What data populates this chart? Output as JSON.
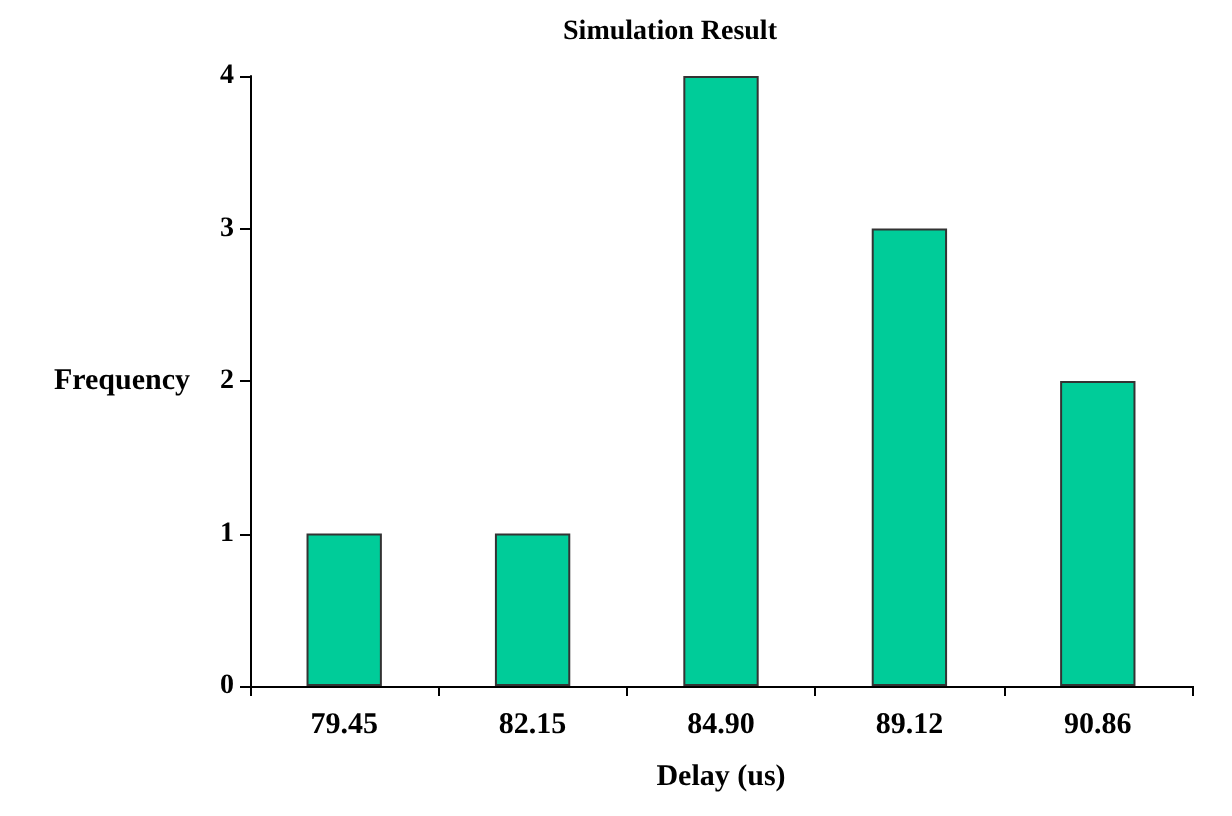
{
  "chart_data": {
    "type": "bar",
    "title": "Simulation Result",
    "xlabel": "Delay (us)",
    "ylabel": "Frequency",
    "categories": [
      "79.45",
      "82.15",
      "84.90",
      "89.12",
      "90.86"
    ],
    "values": [
      1,
      1,
      4,
      3,
      2
    ],
    "color": "#00cc99",
    "ylim": [
      0,
      4
    ],
    "yticks": [
      0,
      1,
      2,
      3,
      4
    ],
    "grid": false
  }
}
